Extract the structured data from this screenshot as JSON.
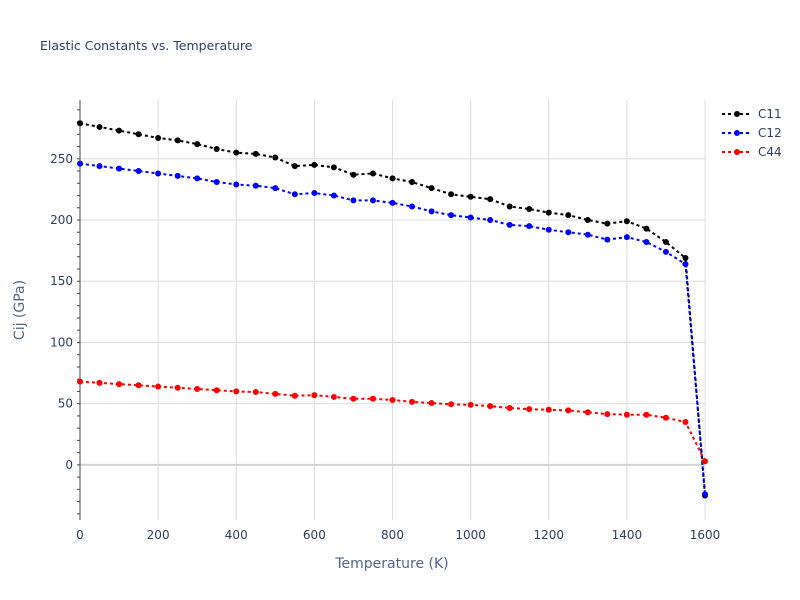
{
  "chart_data": {
    "type": "line",
    "title": "Elastic Constants vs. Temperature",
    "xlabel": "Temperature (K)",
    "ylabel": "Cij (GPa)",
    "xlim": [
      0,
      1600
    ],
    "ylim": [
      -45,
      298
    ],
    "xticks": [
      0,
      200,
      400,
      600,
      800,
      1000,
      1200,
      1400,
      1600
    ],
    "yticks": [
      0,
      50,
      100,
      150,
      200,
      250
    ],
    "legend_position": "top-right",
    "x": [
      0,
      50,
      100,
      150,
      200,
      250,
      300,
      350,
      400,
      450,
      500,
      550,
      600,
      650,
      700,
      750,
      800,
      850,
      900,
      950,
      1000,
      1050,
      1100,
      1150,
      1200,
      1250,
      1300,
      1350,
      1400,
      1450,
      1500,
      1550,
      1600
    ],
    "series": [
      {
        "name": "C11",
        "color": "#000000",
        "values": [
          279,
          276,
          273,
          270,
          267,
          265,
          262,
          258,
          255,
          254,
          251,
          244,
          245,
          243,
          237,
          238,
          234,
          231,
          226,
          221,
          219,
          217,
          211,
          209,
          206,
          204,
          200,
          197,
          199,
          193,
          182,
          169,
          -25
        ]
      },
      {
        "name": "C12",
        "color": "#0000ff",
        "values": [
          246,
          244,
          242,
          240,
          238,
          236,
          234,
          231,
          229,
          228,
          226,
          221,
          222,
          220,
          216,
          216,
          214,
          211,
          207,
          204,
          202,
          200,
          196,
          195,
          192,
          190,
          188,
          184,
          186,
          182,
          174,
          164,
          -24
        ]
      },
      {
        "name": "C44",
        "color": "#ff0000",
        "values": [
          68,
          67,
          66,
          65,
          64,
          63,
          62,
          61,
          60,
          59.5,
          58,
          56.5,
          57,
          55.5,
          54,
          54,
          53,
          51.5,
          50.5,
          49.5,
          49,
          48,
          46.5,
          45.5,
          45,
          44.5,
          43,
          41.5,
          41,
          41,
          38.5,
          35,
          3
        ]
      }
    ]
  }
}
